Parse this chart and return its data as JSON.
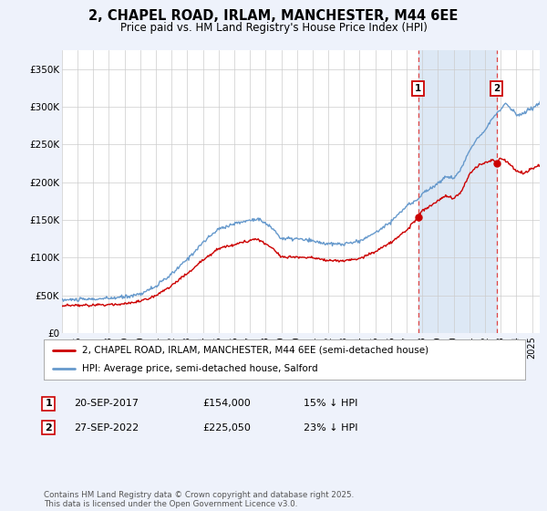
{
  "title": "2, CHAPEL ROAD, IRLAM, MANCHESTER, M44 6EE",
  "subtitle": "Price paid vs. HM Land Registry's House Price Index (HPI)",
  "ylabel_ticks": [
    "£0",
    "£50K",
    "£100K",
    "£150K",
    "£200K",
    "£250K",
    "£300K",
    "£350K"
  ],
  "ytick_values": [
    0,
    50000,
    100000,
    150000,
    200000,
    250000,
    300000,
    350000
  ],
  "ylim": [
    0,
    375000
  ],
  "xlim_start": 1995.0,
  "xlim_end": 2025.5,
  "sale1_date": 2017.73,
  "sale1_price": 154000,
  "sale1_label": "1",
  "sale2_date": 2022.73,
  "sale2_price": 225050,
  "sale2_label": "2",
  "legend_line1": "2, CHAPEL ROAD, IRLAM, MANCHESTER, M44 6EE (semi-detached house)",
  "legend_line2": "HPI: Average price, semi-detached house, Salford",
  "footer": "Contains HM Land Registry data © Crown copyright and database right 2025.\nThis data is licensed under the Open Government Licence v3.0.",
  "line_color_red": "#cc0000",
  "line_color_blue": "#6699cc",
  "background_color": "#eef2fb",
  "plot_bg_color": "#ffffff",
  "grid_color": "#cccccc",
  "span_color": "#dde8f5"
}
